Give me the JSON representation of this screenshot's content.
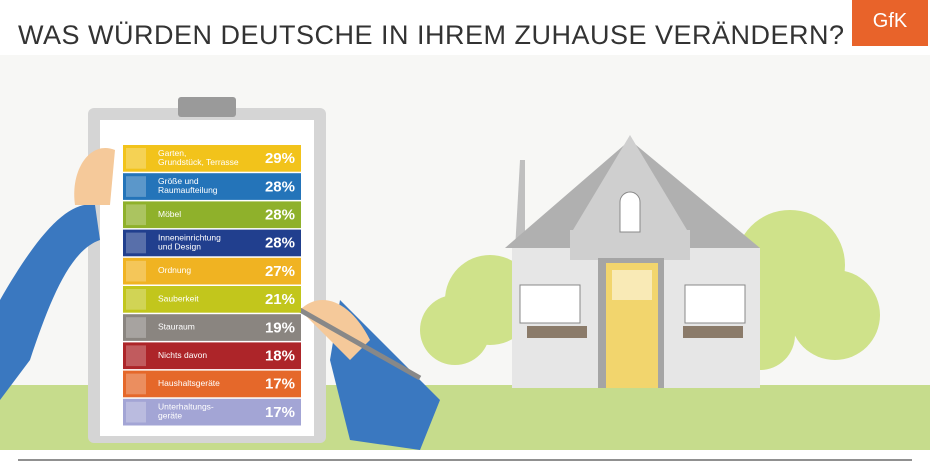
{
  "header": {
    "title": "WAS WÜRDEN DEUTSCHE IN IHREM ZUHAUSE VERÄNDERN?",
    "logo": "GfK"
  },
  "list": {
    "items": [
      {
        "label": [
          "Garten,",
          "Grundstück, Terrasse"
        ],
        "value": "29%",
        "color": "#f2c31b"
      },
      {
        "label": [
          "Größe und",
          "Raumaufteilung"
        ],
        "value": "28%",
        "color": "#2474b9"
      },
      {
        "label": [
          "Möbel"
        ],
        "value": "28%",
        "color": "#8fb12b"
      },
      {
        "label": [
          "Inneneinrichtung",
          "und Design"
        ],
        "value": "28%",
        "color": "#213f8e"
      },
      {
        "label": [
          "Ordnung"
        ],
        "value": "27%",
        "color": "#f0b322"
      },
      {
        "label": [
          "Sauberkeit"
        ],
        "value": "21%",
        "color": "#c2c61c"
      },
      {
        "label": [
          "Stauraum"
        ],
        "value": "19%",
        "color": "#8a8580"
      },
      {
        "label": [
          "Nichts davon"
        ],
        "value": "18%",
        "color": "#ad2529"
      },
      {
        "label": [
          "Haushaltsgeräte"
        ],
        "value": "17%",
        "color": "#e5682a"
      },
      {
        "label": [
          "Unterhaltungs-",
          "geräte"
        ],
        "value": "17%",
        "color": "#a3a5d5"
      }
    ]
  }
}
